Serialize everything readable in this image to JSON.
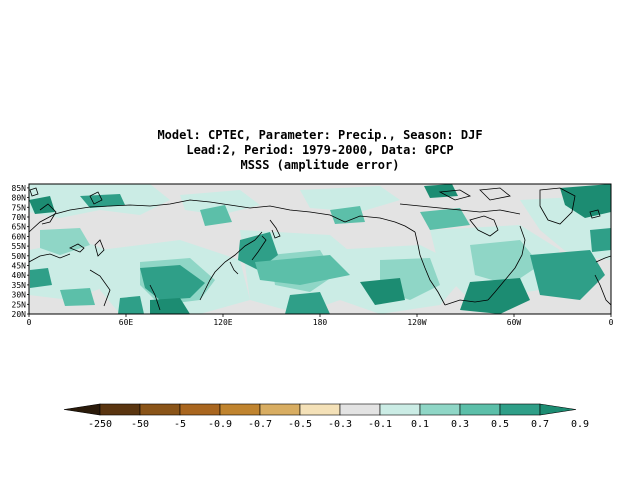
{
  "title": {
    "line1": "Model: CPTEC, Parameter: Precip., Season: DJF",
    "line2": "Lead:2, Period: 1979-2000, Data: GPCP",
    "line3": "MSSS (amplitude error)"
  },
  "map": {
    "lat_ticks": [
      "85N",
      "80N",
      "75N",
      "70N",
      "65N",
      "60N",
      "55N",
      "50N",
      "45N",
      "40N",
      "35N",
      "30N",
      "25N",
      "20N"
    ],
    "lat_values": [
      85,
      80,
      75,
      70,
      65,
      60,
      55,
      50,
      45,
      40,
      35,
      30,
      25,
      20
    ],
    "lon_ticks": [
      "0",
      "60E",
      "120E",
      "180",
      "120W",
      "60W",
      "0"
    ],
    "lon_values": [
      0,
      60,
      120,
      180,
      240,
      300,
      360
    ],
    "lat_range": [
      20,
      87
    ],
    "lon_range": [
      0,
      360
    ]
  },
  "colorbar": {
    "labels": [
      "-250",
      "-50",
      "-5",
      "-0.9",
      "-0.7",
      "-0.5",
      "-0.3",
      "-0.1",
      "0.1",
      "0.3",
      "0.5",
      "0.7",
      "0.9"
    ],
    "colors": [
      "#2a1a0a",
      "#5a3510",
      "#8a5418",
      "#a9661f",
      "#c0842f",
      "#d8ad62",
      "#f4e1b8",
      "#e3e3e3",
      "#cbece5",
      "#8fd6c6",
      "#5cbfa9",
      "#2f9f88",
      "#1c8c72"
    ]
  },
  "colors": {
    "land_outline": "#000000",
    "neutral": "#e3e3e3",
    "light_teal": "#cbece5",
    "mid_teal": "#8fd6c6",
    "teal": "#5cbfa9",
    "dark_teal": "#1c8c72"
  }
}
